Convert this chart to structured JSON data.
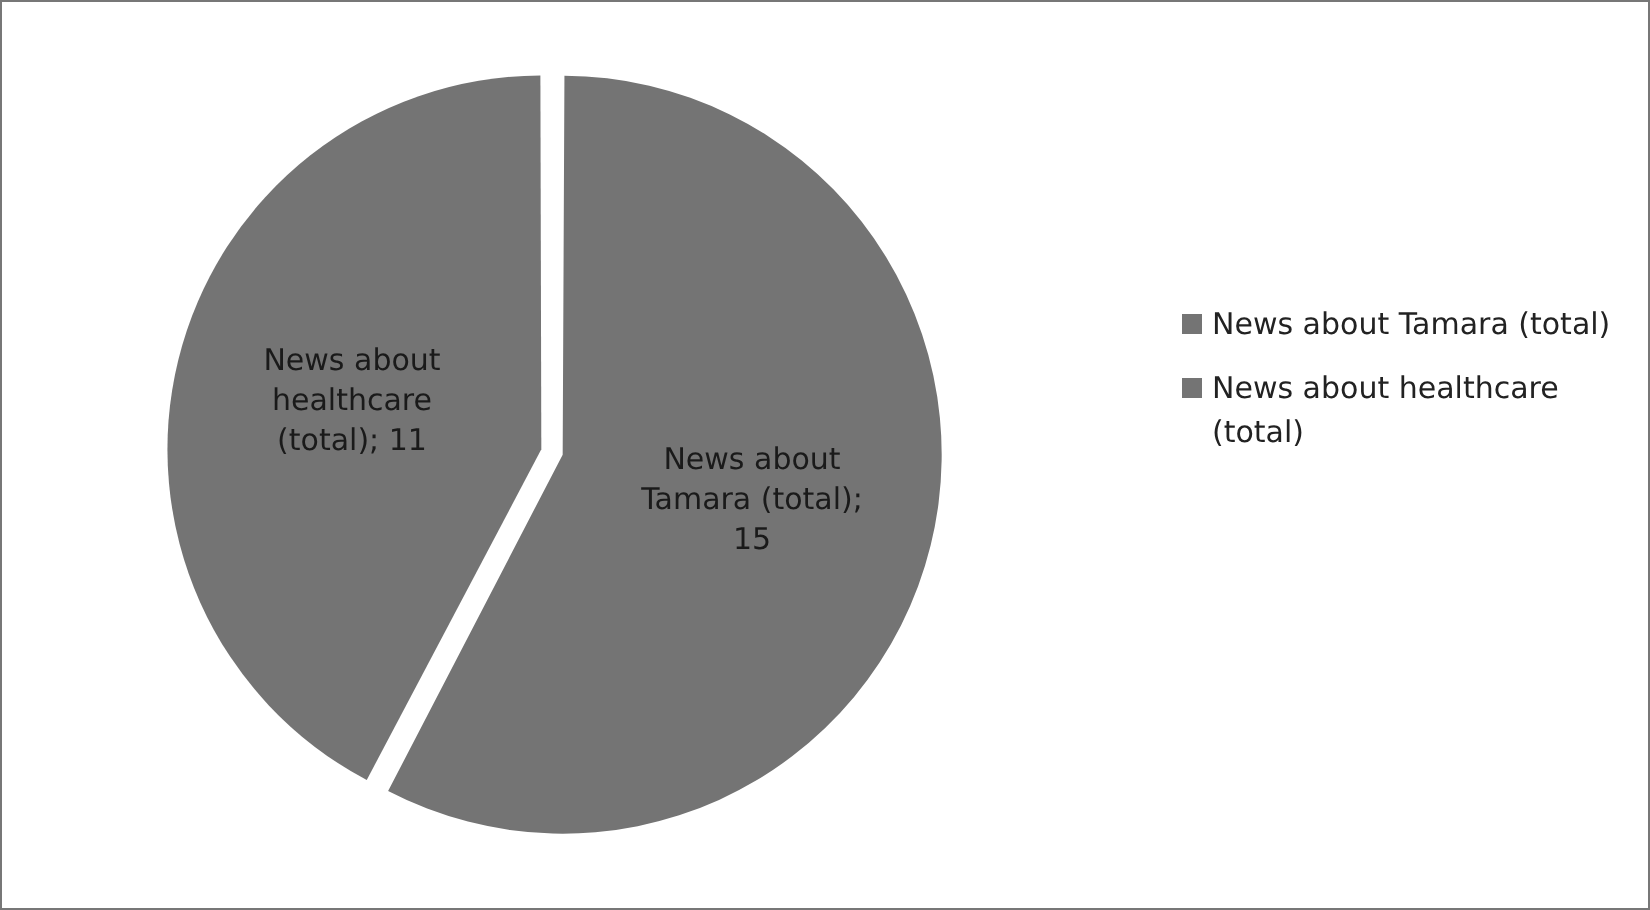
{
  "chart_data": {
    "type": "pie",
    "categories": [
      "News about Tamara (total)",
      "News about healthcare (total)"
    ],
    "values": [
      15,
      11
    ],
    "colors": [
      "#747474",
      "#747474"
    ],
    "value_labels": [
      "News about Tamara (total); 15",
      "News about healthcare (total); 11"
    ],
    "legend": "right"
  }
}
